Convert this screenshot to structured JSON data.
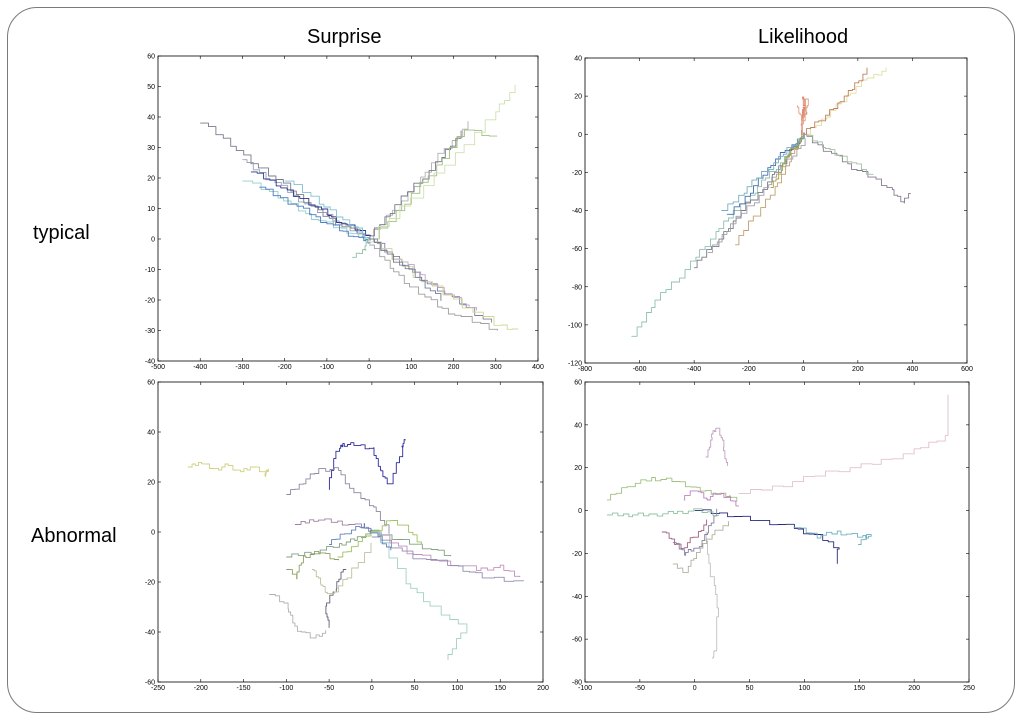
{
  "column_titles": [
    "Surprise",
    "Likelihood"
  ],
  "row_titles": [
    "typical",
    "Abnormal"
  ],
  "chart_data": [
    {
      "type": "line",
      "panel": "Surprise / typical",
      "xlim": [
        -500,
        400
      ],
      "ylim": [
        -40,
        60
      ],
      "xticks": [
        -500,
        -400,
        -300,
        -200,
        -100,
        0,
        100,
        200,
        300,
        400
      ],
      "yticks": [
        -40,
        -30,
        -20,
        -10,
        0,
        10,
        20,
        30,
        40,
        50,
        60
      ],
      "series": [
        {
          "color": "#7a7a8c",
          "x": [
            -400,
            -330,
            -260,
            -190,
            -120,
            -60,
            0
          ],
          "y": [
            38,
            31,
            23,
            16,
            9,
            4,
            0
          ]
        },
        {
          "color": "#9aa0b4",
          "x": [
            -300,
            -240,
            -180,
            -120,
            -60,
            0
          ],
          "y": [
            26,
            20,
            14,
            9,
            4,
            0
          ]
        },
        {
          "color": "#2a3a8c",
          "x": [
            -280,
            -220,
            -160,
            -100,
            -50,
            0
          ],
          "y": [
            22,
            18,
            13,
            8,
            4,
            1
          ]
        },
        {
          "color": "#8fd0c8",
          "x": [
            -300,
            -220,
            -150,
            -80,
            -30,
            0
          ],
          "y": [
            19,
            14,
            8,
            4,
            1,
            0
          ]
        },
        {
          "color": "#4a7ac0",
          "x": [
            -260,
            -190,
            -130,
            -70,
            -20,
            0
          ],
          "y": [
            17,
            12,
            7,
            3,
            0,
            -1
          ]
        },
        {
          "color": "#80c0d0",
          "x": [
            -200,
            -120,
            -60,
            -20,
            0
          ],
          "y": [
            19,
            12,
            6,
            2,
            0
          ]
        },
        {
          "color": "#b0b0b0",
          "x": [
            0,
            60,
            120,
            180,
            230
          ],
          "y": [
            0,
            10,
            20,
            30,
            38
          ]
        },
        {
          "color": "#7a7a8c",
          "x": [
            0,
            50,
            110,
            170,
            220
          ],
          "y": [
            1,
            9,
            18,
            27,
            35
          ]
        },
        {
          "color": "#a0c080",
          "x": [
            0,
            80,
            160,
            230,
            300
          ],
          "y": [
            0,
            12,
            24,
            36,
            33
          ]
        },
        {
          "color": "#d0e0b0",
          "x": [
            0,
            100,
            200,
            300,
            350
          ],
          "y": [
            0,
            14,
            28,
            42,
            50
          ]
        },
        {
          "color": "#8080a0",
          "x": [
            0,
            70,
            140,
            210,
            290
          ],
          "y": [
            0,
            -8,
            -15,
            -21,
            -28
          ]
        },
        {
          "color": "#c0a0d0",
          "x": [
            0,
            60,
            120,
            180,
            250
          ],
          "y": [
            0,
            -6,
            -12,
            -18,
            -24
          ]
        },
        {
          "color": "#a0a0a0",
          "x": [
            0,
            50,
            100,
            160,
            220,
            300
          ],
          "y": [
            -2,
            -9,
            -16,
            -22,
            -26,
            -30
          ]
        },
        {
          "color": "#d0d890",
          "x": [
            0,
            100,
            200,
            300,
            350
          ],
          "y": [
            -1,
            -12,
            -20,
            -28,
            -30
          ]
        },
        {
          "color": "#708090",
          "x": [
            0,
            60,
            120,
            170
          ],
          "y": [
            0,
            -7,
            -14,
            -20
          ]
        },
        {
          "color": "#90c0a0",
          "x": [
            -40,
            -10,
            0
          ],
          "y": [
            -6,
            -3,
            0
          ]
        }
      ]
    },
    {
      "type": "line",
      "panel": "Likelihood / typical",
      "xlim": [
        -800,
        600
      ],
      "ylim": [
        -120,
        40
      ],
      "xticks": [
        -800,
        -600,
        -400,
        -200,
        0,
        200,
        400,
        600
      ],
      "yticks": [
        -120,
        -100,
        -80,
        -60,
        -40,
        -20,
        0,
        20,
        40
      ],
      "series": [
        {
          "color": "#90c0b0",
          "x": [
            -630,
            -560,
            -480,
            -400,
            -320,
            -250,
            -180,
            -120,
            -60,
            0
          ],
          "y": [
            -106,
            -90,
            -78,
            -64,
            -52,
            -40,
            -30,
            -20,
            -10,
            0
          ]
        },
        {
          "color": "#7a7a8c",
          "x": [
            -400,
            -330,
            -260,
            -190,
            -120,
            -60,
            0
          ],
          "y": [
            -70,
            -58,
            -46,
            -34,
            -22,
            -12,
            0
          ]
        },
        {
          "color": "#a0a0a0",
          "x": [
            -350,
            -280,
            -200,
            -130,
            -60,
            0
          ],
          "y": [
            -62,
            -50,
            -38,
            -26,
            -14,
            -2
          ]
        },
        {
          "color": "#4a6ab0",
          "x": [
            -280,
            -200,
            -130,
            -60,
            0
          ],
          "y": [
            -42,
            -30,
            -18,
            -8,
            0
          ]
        },
        {
          "color": "#c0a070",
          "x": [
            -250,
            -180,
            -110,
            -50,
            0
          ],
          "y": [
            -58,
            -42,
            -28,
            -14,
            0
          ]
        },
        {
          "color": "#70b0c0",
          "x": [
            -300,
            -220,
            -150,
            -80,
            0
          ],
          "y": [
            -40,
            -30,
            -20,
            -10,
            0
          ]
        },
        {
          "color": "#8a7a90",
          "x": [
            0,
            80,
            160,
            240,
            320,
            370,
            400
          ],
          "y": [
            0,
            -8,
            -16,
            -22,
            -30,
            -36,
            -30
          ]
        },
        {
          "color": "#a0c0a0",
          "x": [
            0,
            70,
            140,
            210,
            260
          ],
          "y": [
            0,
            -6,
            -12,
            -18,
            -22
          ]
        },
        {
          "color": "#e0e0a0",
          "x": [
            0,
            80,
            160,
            240,
            300
          ],
          "y": [
            0,
            10,
            20,
            30,
            34
          ]
        },
        {
          "color": "#c08060",
          "x": [
            0,
            60,
            120,
            180,
            240
          ],
          "y": [
            0,
            8,
            16,
            24,
            34
          ]
        },
        {
          "color": "#e08070",
          "x": [
            -10,
            0,
            10,
            -5,
            5,
            0
          ],
          "y": [
            5,
            15,
            10,
            20,
            12,
            0
          ]
        },
        {
          "color": "#e0a080",
          "x": [
            -20,
            0,
            15,
            0
          ],
          "y": [
            15,
            8,
            18,
            0
          ]
        },
        {
          "color": "#a0a040",
          "x": [
            -120,
            -80,
            -40,
            0
          ],
          "y": [
            -28,
            -18,
            -8,
            0
          ]
        }
      ]
    },
    {
      "type": "line",
      "panel": "Surprise / Abnormal",
      "xlim": [
        -250,
        200
      ],
      "ylim": [
        -60,
        60
      ],
      "xticks": [
        -250,
        -200,
        -150,
        -100,
        -50,
        0,
        50,
        100,
        150,
        200
      ],
      "yticks": [
        -60,
        -40,
        -20,
        0,
        20,
        40,
        60
      ],
      "series": [
        {
          "color": "#d0d080",
          "x": [
            -215,
            -200,
            -185,
            -170,
            -155,
            -140,
            -125,
            -120
          ],
          "y": [
            26,
            28,
            25,
            27,
            24,
            26,
            23,
            25
          ]
        },
        {
          "color": "#2a2a9a",
          "x": [
            -50,
            -40,
            -35,
            -20,
            0,
            10,
            20,
            35,
            40
          ],
          "y": [
            17,
            33,
            35,
            35,
            33,
            25,
            20,
            34,
            37
          ]
        },
        {
          "color": "#8a8aa0",
          "x": [
            -100,
            -80,
            -60,
            -40,
            -20,
            0,
            20
          ],
          "y": [
            15,
            20,
            25,
            25,
            15,
            10,
            0
          ]
        },
        {
          "color": "#a080a0",
          "x": [
            -90,
            -70,
            -40,
            -10,
            0
          ],
          "y": [
            3,
            5,
            4,
            2,
            0
          ]
        },
        {
          "color": "#80a080",
          "x": [
            -100,
            -70,
            -40,
            -20,
            0,
            30,
            60,
            90
          ],
          "y": [
            -10,
            -8,
            -5,
            -3,
            0,
            -3,
            -6,
            -10
          ]
        },
        {
          "color": "#c090c0",
          "x": [
            0,
            40,
            80,
            120,
            150,
            175
          ],
          "y": [
            0,
            -8,
            -12,
            -15,
            -14,
            -18
          ]
        },
        {
          "color": "#9090b0",
          "x": [
            0,
            50,
            100,
            130,
            175
          ],
          "y": [
            -2,
            -10,
            -14,
            -18,
            -20
          ]
        },
        {
          "color": "#a0d0c0",
          "x": [
            0,
            40,
            70,
            110,
            90
          ],
          "y": [
            0,
            -20,
            -30,
            -40,
            -52
          ]
        },
        {
          "color": "#b0b0b0",
          "x": [
            -120,
            -100,
            -90,
            -70,
            -55
          ],
          "y": [
            -25,
            -30,
            -38,
            -42,
            -40
          ]
        },
        {
          "color": "#606070",
          "x": [
            -30,
            -40,
            -55,
            -50
          ],
          "y": [
            -15,
            -22,
            -30,
            -38
          ]
        },
        {
          "color": "#a0c060",
          "x": [
            -40,
            -20,
            0,
            20,
            40,
            60
          ],
          "y": [
            -10,
            -5,
            0,
            5,
            2,
            -5
          ]
        },
        {
          "color": "#6080c0",
          "x": [
            -50,
            -30,
            -10,
            0,
            20
          ],
          "y": [
            -5,
            0,
            3,
            0,
            -8
          ]
        },
        {
          "color": "#c0c0a0",
          "x": [
            -70,
            -60,
            -50,
            -30,
            0
          ],
          "y": [
            -15,
            -20,
            -25,
            -18,
            -5
          ]
        },
        {
          "color": "#90a060",
          "x": [
            -100,
            -90,
            -80,
            -60,
            -40
          ],
          "y": [
            -15,
            -18,
            -10,
            -8,
            -12
          ]
        }
      ]
    },
    {
      "type": "line",
      "panel": "Likelihood / Abnormal",
      "xlim": [
        -100,
        250
      ],
      "ylim": [
        -80,
        60
      ],
      "xticks": [
        -100,
        -50,
        0,
        50,
        100,
        150,
        200,
        250
      ],
      "yticks": [
        -80,
        -60,
        -40,
        -20,
        0,
        20,
        40,
        60
      ],
      "series": [
        {
          "color": "#e0c0d0",
          "x": [
            40,
            80,
            120,
            160,
            200,
            230,
            230
          ],
          "y": [
            8,
            12,
            18,
            22,
            28,
            35,
            55
          ]
        },
        {
          "color": "#a0c080",
          "x": [
            -80,
            -60,
            -40,
            -20,
            0,
            20,
            40
          ],
          "y": [
            5,
            12,
            15,
            14,
            10,
            8,
            5
          ]
        },
        {
          "color": "#2a2a7a",
          "x": [
            0,
            30,
            60,
            90,
            110,
            130,
            130
          ],
          "y": [
            0,
            -2,
            -5,
            -8,
            -12,
            -18,
            -24
          ]
        },
        {
          "color": "#70b0c0",
          "x": [
            90,
            110,
            130,
            150,
            160,
            150
          ],
          "y": [
            -8,
            -12,
            -10,
            -12,
            -12,
            -16
          ]
        },
        {
          "color": "#c0c0c0",
          "x": [
            10,
            15,
            20,
            20,
            18
          ],
          "y": [
            -10,
            -30,
            -50,
            -65,
            -70
          ]
        },
        {
          "color": "#8080a0",
          "x": [
            -20,
            -10,
            0,
            10,
            20
          ],
          "y": [
            -15,
            -20,
            -18,
            -10,
            0
          ]
        },
        {
          "color": "#c080c0",
          "x": [
            -10,
            0,
            10,
            20,
            30,
            40
          ],
          "y": [
            5,
            10,
            5,
            8,
            6,
            2
          ]
        },
        {
          "color": "#90c0a0",
          "x": [
            -80,
            -60,
            -40,
            -20,
            0,
            20
          ],
          "y": [
            -2,
            -2,
            -2,
            -1,
            0,
            -2
          ]
        },
        {
          "color": "#a06080",
          "x": [
            -30,
            -20,
            -10,
            0,
            10
          ],
          "y": [
            -10,
            -15,
            -18,
            -12,
            -5
          ]
        },
        {
          "color": "#b0b0a0",
          "x": [
            -20,
            -10,
            0,
            10,
            20,
            30
          ],
          "y": [
            -25,
            -28,
            -20,
            -15,
            -10,
            -5
          ]
        },
        {
          "color": "#c0a0c0",
          "x": [
            10,
            15,
            20,
            25,
            30
          ],
          "y": [
            25,
            35,
            38,
            30,
            20
          ]
        }
      ]
    }
  ]
}
